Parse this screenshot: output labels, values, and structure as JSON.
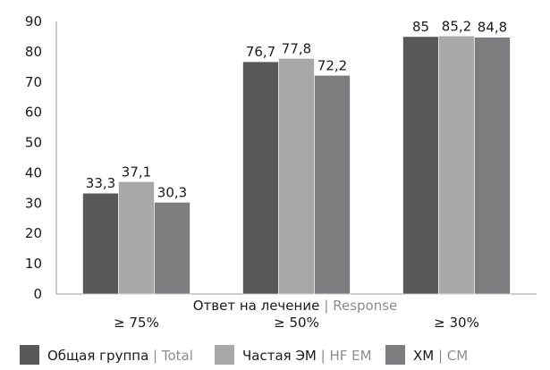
{
  "chart_data": {
    "type": "bar",
    "categories": [
      "≥ 75%",
      "≥ 50%",
      "≥ 30%"
    ],
    "series": [
      {
        "name_ru": "Общая группа",
        "name_en": "Total",
        "color": "#58585a",
        "values": [
          33.3,
          76.7,
          85
        ]
      },
      {
        "name_ru": "Частая ЭМ",
        "name_en": "HF EM",
        "color": "#a7a8aa",
        "values": [
          37.1,
          77.8,
          85.2
        ]
      },
      {
        "name_ru": "ХМ",
        "name_en": "CM",
        "color": "#7c7d80",
        "values": [
          30.3,
          72.2,
          84.8
        ]
      }
    ],
    "data_labels": [
      [
        "33,3",
        "76,7",
        "85"
      ],
      [
        "37,1",
        "77,8",
        "85,2"
      ],
      [
        "30,3",
        "72,2",
        "84,8"
      ]
    ],
    "xlabel_ru": "Ответ на лечение",
    "xlabel_en": "Response",
    "separator": "|",
    "ylim": [
      0,
      90
    ],
    "yticks": [
      0,
      10,
      20,
      30,
      40,
      50,
      60,
      70,
      80,
      90
    ],
    "grid": false,
    "legend_position": "bottom"
  }
}
